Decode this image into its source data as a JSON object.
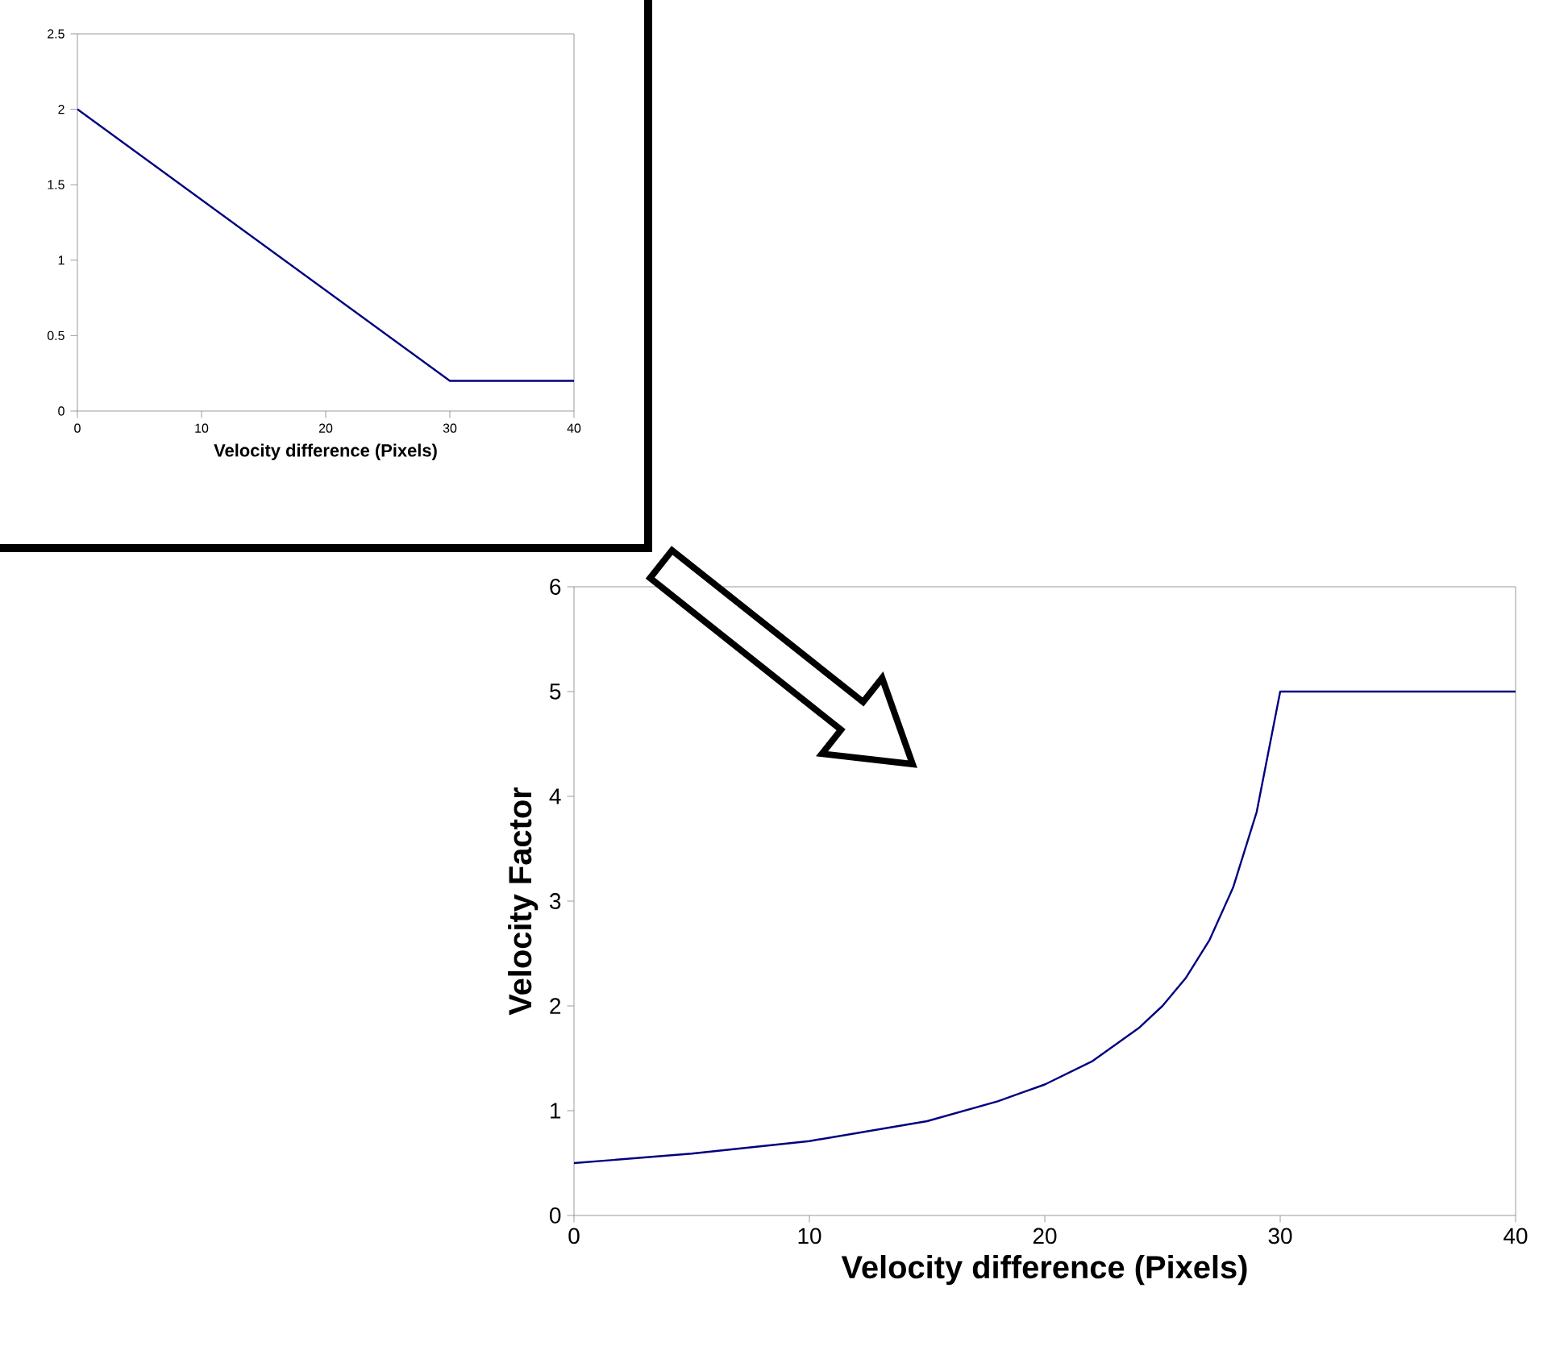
{
  "chart_data": [
    {
      "type": "line",
      "xlabel": "Velocity difference (Pixels)",
      "xlim": [
        0,
        40
      ],
      "ylim": [
        0,
        2.5
      ],
      "xticks": [
        0,
        10,
        20,
        30,
        40
      ],
      "yticks": [
        0,
        0.5,
        1,
        1.5,
        2,
        2.5
      ],
      "x": [
        0,
        30,
        40
      ],
      "values": [
        2,
        0.2,
        0.2
      ],
      "color": "#000080"
    },
    {
      "type": "line",
      "xlabel": "Velocity difference (Pixels)",
      "ylabel": "Velocity Factor",
      "xlim": [
        0,
        40
      ],
      "ylim": [
        0,
        6
      ],
      "xticks": [
        0,
        10,
        20,
        30,
        40
      ],
      "yticks": [
        0,
        1,
        2,
        3,
        4,
        5,
        6
      ],
      "x": [
        0,
        5,
        10,
        15,
        18,
        20,
        22,
        24,
        25,
        26,
        27,
        28,
        29,
        30,
        40
      ],
      "values": [
        0.5,
        0.59,
        0.71,
        0.9,
        1.09,
        1.25,
        1.47,
        1.79,
        2.0,
        2.27,
        2.63,
        3.13,
        3.85,
        5,
        5
      ],
      "color": "#000080"
    }
  ]
}
